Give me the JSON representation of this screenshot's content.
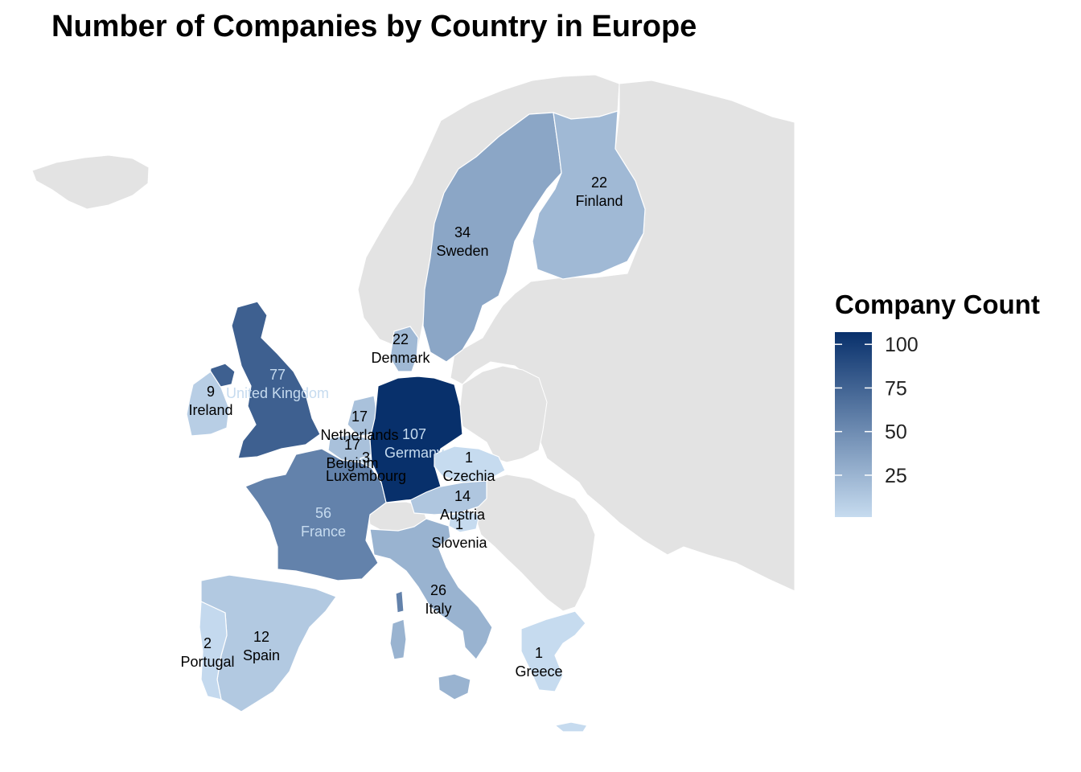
{
  "title": "Number of Companies by Country in Europe",
  "legend": {
    "title": "Company Count",
    "ticks": [
      100,
      75,
      50,
      25
    ],
    "range": [
      1,
      107
    ],
    "color_low": "#c6dbef",
    "color_high": "#08306b"
  },
  "colors": {
    "no_data": "#e3e3e3",
    "border": "#ffffff",
    "label_dark": "#000000",
    "label_light": "#c6dbef"
  },
  "chart_data": {
    "type": "choropleth",
    "value_label": "Company Count",
    "regions": [
      {
        "name": "Germany",
        "value": 107
      },
      {
        "name": "United Kingdom",
        "value": 77
      },
      {
        "name": "France",
        "value": 56
      },
      {
        "name": "Sweden",
        "value": 34
      },
      {
        "name": "Italy",
        "value": 26
      },
      {
        "name": "Finland",
        "value": 22
      },
      {
        "name": "Denmark",
        "value": 22
      },
      {
        "name": "Netherlands",
        "value": 17
      },
      {
        "name": "Belgium",
        "value": 17
      },
      {
        "name": "Austria",
        "value": 14
      },
      {
        "name": "Spain",
        "value": 12
      },
      {
        "name": "Ireland",
        "value": 9
      },
      {
        "name": "Luxembourg",
        "value": 3
      },
      {
        "name": "Portugal",
        "value": 2
      },
      {
        "name": "Czechia",
        "value": 1
      },
      {
        "name": "Slovenia",
        "value": 1
      },
      {
        "name": "Greece",
        "value": 1
      }
    ]
  }
}
